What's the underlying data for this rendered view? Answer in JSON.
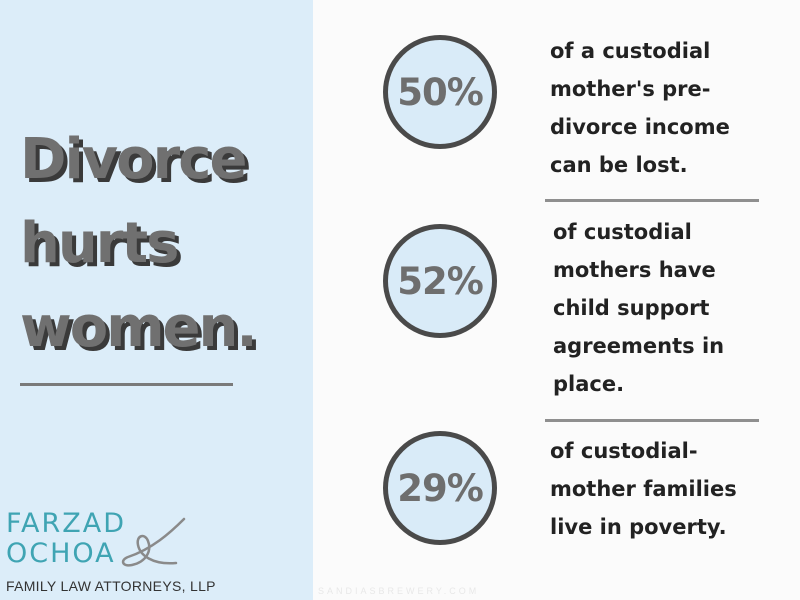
{
  "headline": {
    "lines": [
      "Divorce",
      "hurts",
      "women."
    ]
  },
  "stats": [
    {
      "value": "50%",
      "text": [
        "of a custodial",
        "mother's pre-",
        "divorce income",
        "can be lost."
      ]
    },
    {
      "value": "52%",
      "text": [
        "of custodial",
        "mothers have",
        "child support",
        "agreements in",
        "place."
      ]
    },
    {
      "value": "29%",
      "text": [
        "of custodial-",
        "mother families",
        "live in poverty."
      ]
    }
  ],
  "logo": {
    "line1": "FARZAD",
    "line2": "OCHOA",
    "subtitle": "FAMILY LAW ATTORNEYS, LLP"
  },
  "watermark": "SANDIASBREWERY.COM",
  "colors": {
    "left_panel": "#dcedf9",
    "right_panel": "#fbfbfb",
    "circle_fill": "#d9ebf8",
    "circle_border": "#4a4a4a",
    "logo_teal": "#3fa4b3",
    "headline_gray": "#707070"
  }
}
